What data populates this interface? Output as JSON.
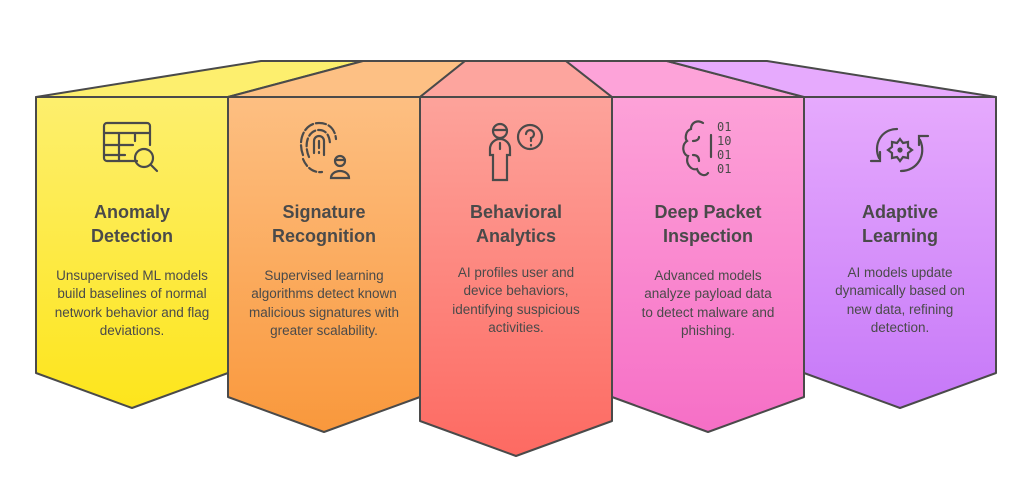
{
  "stages": [
    {
      "title_line1": "Anomaly",
      "title_line2": "Detection",
      "description": "Unsupervised ML models build baselines of normal network behavior and flag deviations.",
      "icon": "table-search-icon",
      "color_top": "#fdef6e",
      "color_bottom": "#fde51c"
    },
    {
      "title_line1": "Signature",
      "title_line2": "Recognition",
      "description": "Supervised learning algorithms detect known malicious signatures with greater scalability.",
      "icon": "fingerprint-user-icon",
      "color_top": "#fdbf82",
      "color_bottom": "#f9983c"
    },
    {
      "title_line1": "Behavioral",
      "title_line2": "Analytics",
      "description": "AI profiles user and device behaviors, identifying suspicious activities.",
      "icon": "user-question-icon",
      "color_top": "#fda39b",
      "color_bottom": "#fd6a62"
    },
    {
      "title_line1": "Deep Packet",
      "title_line2": "Inspection",
      "description": "Advanced models analyze payload data to detect malware and phishing.",
      "icon": "brain-binary-icon",
      "color_top": "#fda2d8",
      "color_bottom": "#f66fc6"
    },
    {
      "title_line1": "Adaptive",
      "title_line2": "Learning",
      "description": "AI models update dynamically based on new data, refining detection.",
      "icon": "gear-cycle-icon",
      "color_top": "#e6aafd",
      "color_bottom": "#c678f8"
    }
  ],
  "binary_digits": [
    "01",
    "10",
    "01",
    "01"
  ],
  "outline_color": "#4a4a4a"
}
